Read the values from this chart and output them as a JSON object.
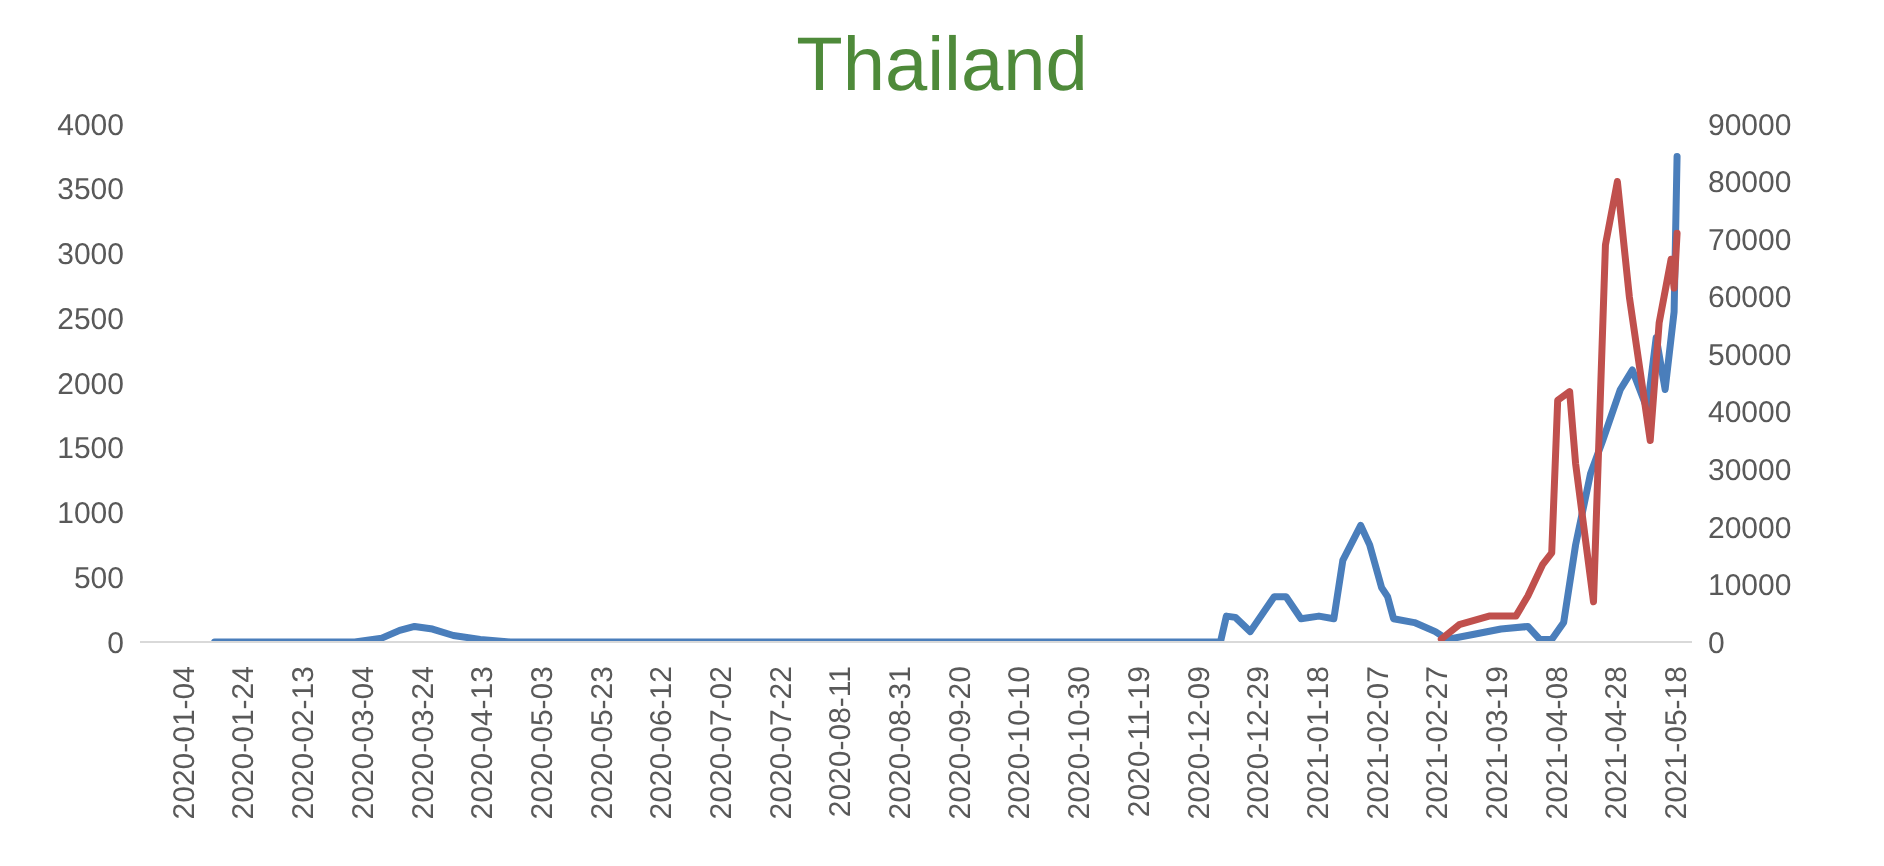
{
  "chart_data": {
    "type": "line",
    "title": "Thailand",
    "xlim": [
      "2019-12-20",
      "2021-05-23"
    ],
    "xticks": [
      "2020-01-04",
      "2020-01-24",
      "2020-02-13",
      "2020-03-04",
      "2020-03-24",
      "2020-04-13",
      "2020-05-03",
      "2020-05-23",
      "2020-06-12",
      "2020-07-02",
      "2020-07-22",
      "2020-08-11",
      "2020-08-31",
      "2020-09-20",
      "2020-10-10",
      "2020-10-30",
      "2020-11-19",
      "2020-12-09",
      "2020-12-29",
      "2021-01-18",
      "2021-02-07",
      "2021-02-27",
      "2021-03-19",
      "2021-04-08",
      "2021-04-28",
      "2021-05-18"
    ],
    "ylim": [
      0,
      4000
    ],
    "yticks": [
      0,
      500,
      1000,
      1500,
      2000,
      2500,
      3000,
      3500,
      4000
    ],
    "y2lim": [
      0,
      90000
    ],
    "y2ticks": [
      0,
      10000,
      20000,
      30000,
      40000,
      50000,
      60000,
      70000,
      80000,
      90000
    ],
    "marker": "none",
    "line_style": "solid",
    "series": [
      {
        "color": "#4a7ebb",
        "x": [
          "2020-01-14",
          "2020-03-01",
          "2020-03-10",
          "2020-03-16",
          "2020-03-21",
          "2020-03-27",
          "2020-04-03",
          "2020-04-12",
          "2020-04-22",
          "2020-05-01",
          "2020-12-16",
          "2020-12-18",
          "2020-12-21",
          "2020-12-26",
          "2021-01-03",
          "2021-01-07",
          "2021-01-12",
          "2021-01-18",
          "2021-01-23",
          "2021-01-26",
          "2021-02-01",
          "2021-02-04",
          "2021-02-08",
          "2021-02-10",
          "2021-02-12",
          "2021-02-19",
          "2021-02-26",
          "2021-03-02",
          "2021-03-11",
          "2021-03-20",
          "2021-03-29",
          "2021-04-02",
          "2021-04-06",
          "2021-04-10",
          "2021-04-14",
          "2021-04-19",
          "2021-04-23",
          "2021-04-29",
          "2021-05-03",
          "2021-05-08",
          "2021-05-11",
          "2021-05-14",
          "2021-05-17",
          "2021-05-18"
        ],
        "values": [
          0,
          0,
          30,
          90,
          120,
          100,
          50,
          20,
          0,
          0,
          0,
          200,
          190,
          80,
          350,
          350,
          180,
          200,
          180,
          630,
          900,
          750,
          420,
          350,
          180,
          150,
          80,
          20,
          60,
          100,
          120,
          20,
          20,
          150,
          750,
          1300,
          1550,
          1950,
          2100,
          1800,
          2350,
          1950,
          2550,
          3750
        ]
      },
      {
        "color": "#c0504d",
        "axis": "y2",
        "x": [
          "2021-02-28",
          "2021-03-06",
          "2021-03-16",
          "2021-03-25",
          "2021-03-29",
          "2021-04-03",
          "2021-04-06",
          "2021-04-08",
          "2021-04-12",
          "2021-04-14",
          "2021-04-20",
          "2021-04-24",
          "2021-04-28",
          "2021-05-02",
          "2021-05-09",
          "2021-05-12",
          "2021-05-16",
          "2021-05-17",
          "2021-05-18"
        ],
        "values": [
          500,
          3000,
          4500,
          4500,
          8000,
          13500,
          15500,
          42000,
          43500,
          31000,
          7000,
          69000,
          80000,
          60000,
          35000,
          55500,
          66500,
          61500,
          71000
        ]
      }
    ]
  }
}
